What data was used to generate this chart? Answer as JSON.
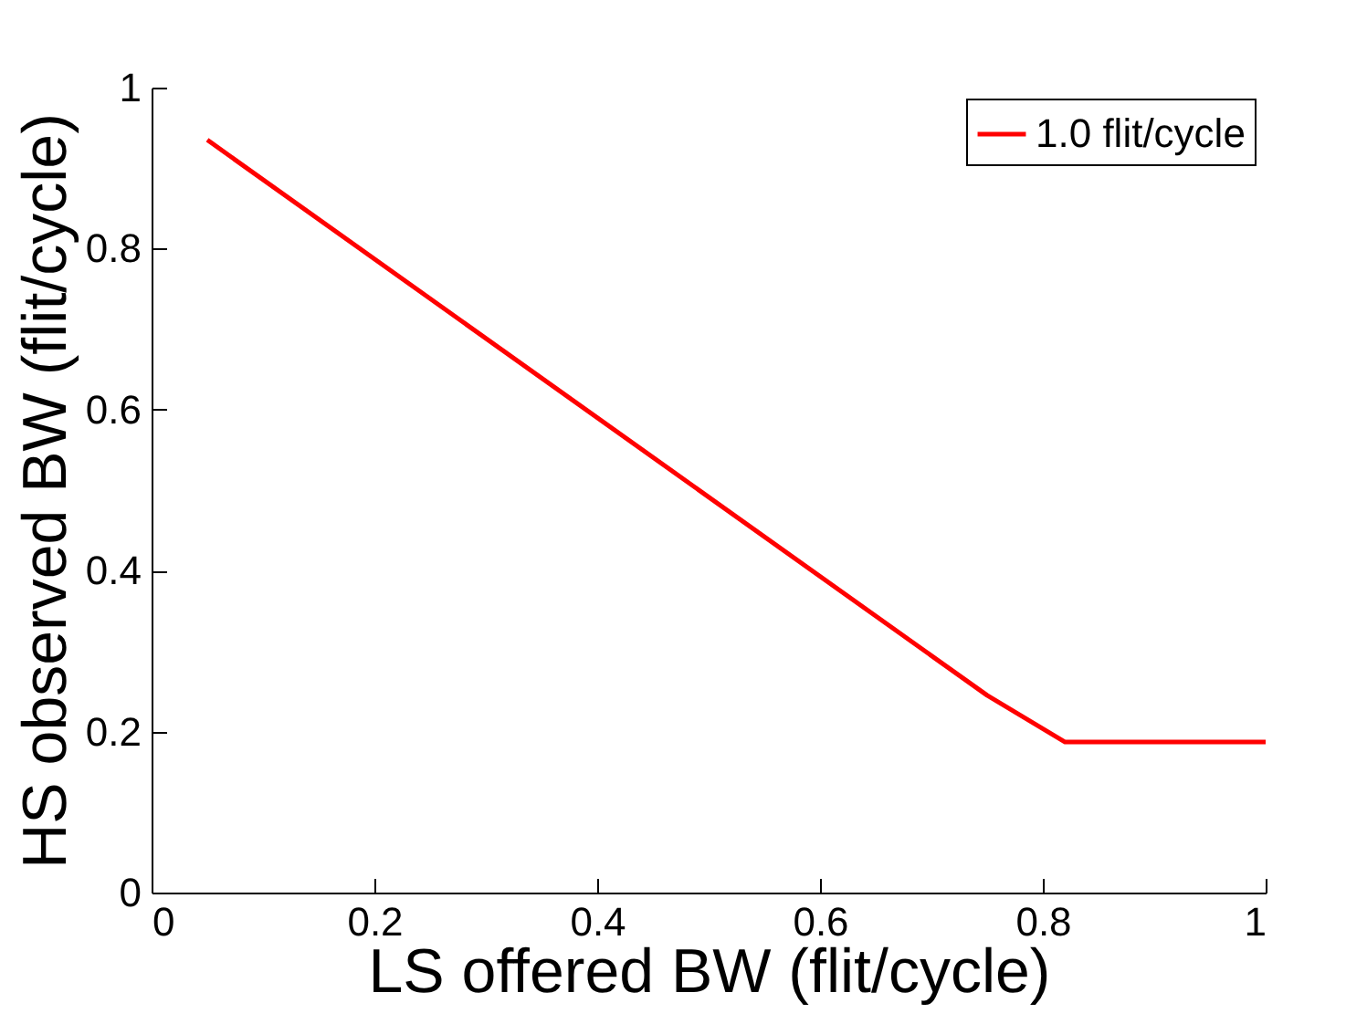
{
  "chart_data": {
    "type": "line",
    "xlabel": "LS offered BW (flit/cycle)",
    "ylabel": "HS observed BW (flit/cycle)",
    "x": [
      0.05,
      0.75,
      0.82,
      1.0
    ],
    "series": [
      {
        "name": "1.0 flit/cycle",
        "color": "#ff0000",
        "values": [
          0.935,
          0.245,
          0.187,
          0.187
        ]
      }
    ],
    "xlim": [
      0,
      1
    ],
    "ylim": [
      0,
      1
    ],
    "xticks": [
      0,
      0.2,
      0.4,
      0.6,
      0.8,
      1
    ],
    "yticks": [
      0,
      0.2,
      0.4,
      0.6,
      0.8,
      1
    ],
    "legend": "top right",
    "grid": false,
    "marker": "none",
    "line_style": "solid"
  }
}
